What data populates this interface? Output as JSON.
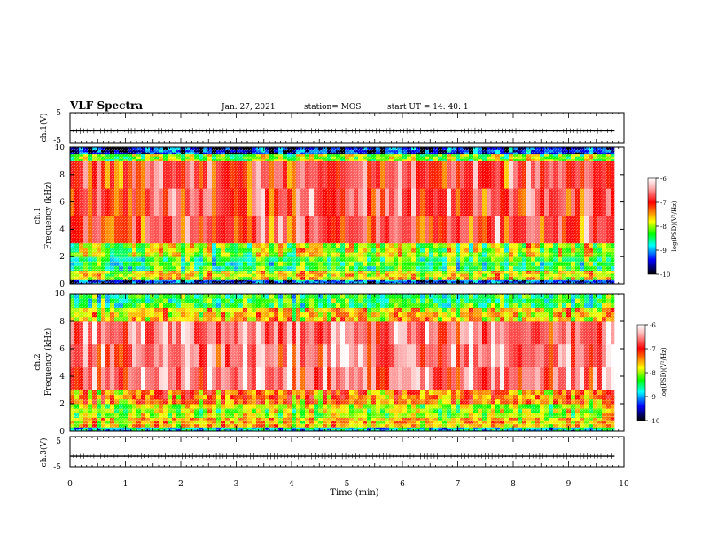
{
  "header": {
    "title": "VLF Spectra",
    "date": "Jan. 27, 2021",
    "station": "station= MOS",
    "start": "start  UT =   14: 40: 1"
  },
  "chart_data": [
    {
      "type": "line",
      "panel": "ch1-waveform",
      "ylabel": "ch.1(V)",
      "ylim": [
        -5,
        5
      ],
      "yticks": [
        "5",
        "-5"
      ],
      "x": [
        0,
        9.83
      ],
      "y": [
        -1,
        -1
      ]
    },
    {
      "type": "heatmap",
      "panel": "ch1-spectrogram",
      "ylabel_top": "ch.1",
      "ylabel": "Frequency (kHz)",
      "ylim": [
        0,
        10
      ],
      "yticks": [
        "0",
        "2",
        "4",
        "6",
        "8",
        "10"
      ],
      "xlim": [
        0,
        9.83
      ],
      "colorbar": {
        "label": "log(PSD)(V²/Hz)",
        "range": [
          -10,
          -6
        ],
        "ticks": [
          "-6",
          "-7",
          "-8",
          "-9",
          "-10"
        ],
        "colors": [
          "#ffffff",
          "#ff0000",
          "#ffff00",
          "#00ff00",
          "#00ffff",
          "#0000ff",
          "#000000"
        ]
      },
      "bands_khz": [
        {
          "from": 0.0,
          "to": 0.3,
          "level": -9.5
        },
        {
          "from": 0.3,
          "to": 1.0,
          "level": -8.0
        },
        {
          "from": 1.0,
          "to": 2.0,
          "level": -8.6
        },
        {
          "from": 2.0,
          "to": 3.0,
          "level": -8.2
        },
        {
          "from": 3.0,
          "to": 9.0,
          "level": -7.0
        },
        {
          "from": 9.0,
          "to": 9.5,
          "level": -8.3
        },
        {
          "from": 9.5,
          "to": 10.0,
          "level": -9.6
        }
      ]
    },
    {
      "type": "heatmap",
      "panel": "ch2-spectrogram",
      "ylabel_top": "ch.2",
      "ylabel": "Frequency (kHz)",
      "ylim": [
        0,
        10
      ],
      "yticks": [
        "0",
        "2",
        "4",
        "6",
        "8",
        "10"
      ],
      "xlim": [
        0,
        9.83
      ],
      "colorbar": {
        "label": "log(PSD)(V²/Hz)",
        "range": [
          -10,
          -6
        ],
        "ticks": [
          "-6",
          "-7",
          "-8",
          "-9",
          "-10"
        ],
        "colors": [
          "#ffffff",
          "#ff0000",
          "#ffff00",
          "#00ff00",
          "#00ffff",
          "#0000ff",
          "#000000"
        ]
      },
      "bands_khz": [
        {
          "from": 0.0,
          "to": 0.3,
          "level": -9.0
        },
        {
          "from": 0.3,
          "to": 1.0,
          "level": -7.8
        },
        {
          "from": 1.0,
          "to": 2.0,
          "level": -8.2
        },
        {
          "from": 2.0,
          "to": 3.0,
          "level": -7.6
        },
        {
          "from": 3.0,
          "to": 8.0,
          "level": -6.7
        },
        {
          "from": 8.0,
          "to": 9.0,
          "level": -7.9
        },
        {
          "from": 9.0,
          "to": 10.0,
          "level": -8.6
        }
      ]
    },
    {
      "type": "line",
      "panel": "ch3-waveform",
      "ylabel": "ch.3(V)",
      "ylim": [
        -5,
        5
      ],
      "yticks": [
        "5",
        "-5"
      ],
      "x": [
        0,
        9.83
      ],
      "y": [
        -1.5,
        -1.5
      ]
    }
  ],
  "time_axis": {
    "label": "Time (min)",
    "ticks": [
      "0",
      "1",
      "2",
      "3",
      "4",
      "5",
      "6",
      "7",
      "8",
      "9",
      "10"
    ],
    "range": [
      0,
      10
    ]
  }
}
